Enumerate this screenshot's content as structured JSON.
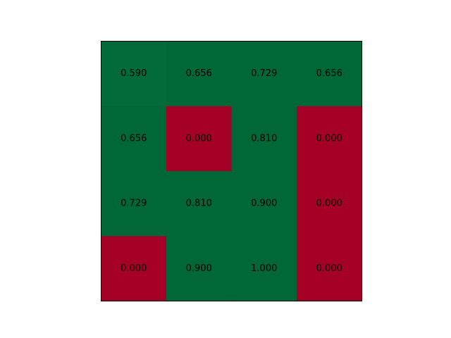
{
  "chart_data": {
    "type": "heatmap",
    "title": "",
    "xlabel": "",
    "ylabel": "",
    "grid": false,
    "legend": "none",
    "rows": 4,
    "cols": 4,
    "values": [
      [
        0.59,
        0.656,
        0.729,
        0.656
      ],
      [
        0.656,
        0.0,
        0.81,
        0.0
      ],
      [
        0.729,
        0.81,
        0.9,
        0.0
      ],
      [
        0.0,
        0.9,
        1.0,
        0.0
      ]
    ],
    "labels": [
      [
        "0.590",
        "0.656",
        "0.729",
        "0.656"
      ],
      [
        "0.656",
        "0.000",
        "0.810",
        "0.000"
      ],
      [
        "0.729",
        "0.810",
        "0.900",
        "0.000"
      ],
      [
        "0.000",
        "0.900",
        "1.000",
        "0.000"
      ]
    ],
    "colormap": {
      "low": "#a50026",
      "high": "#006837",
      "near_high": "#036b39"
    }
  }
}
